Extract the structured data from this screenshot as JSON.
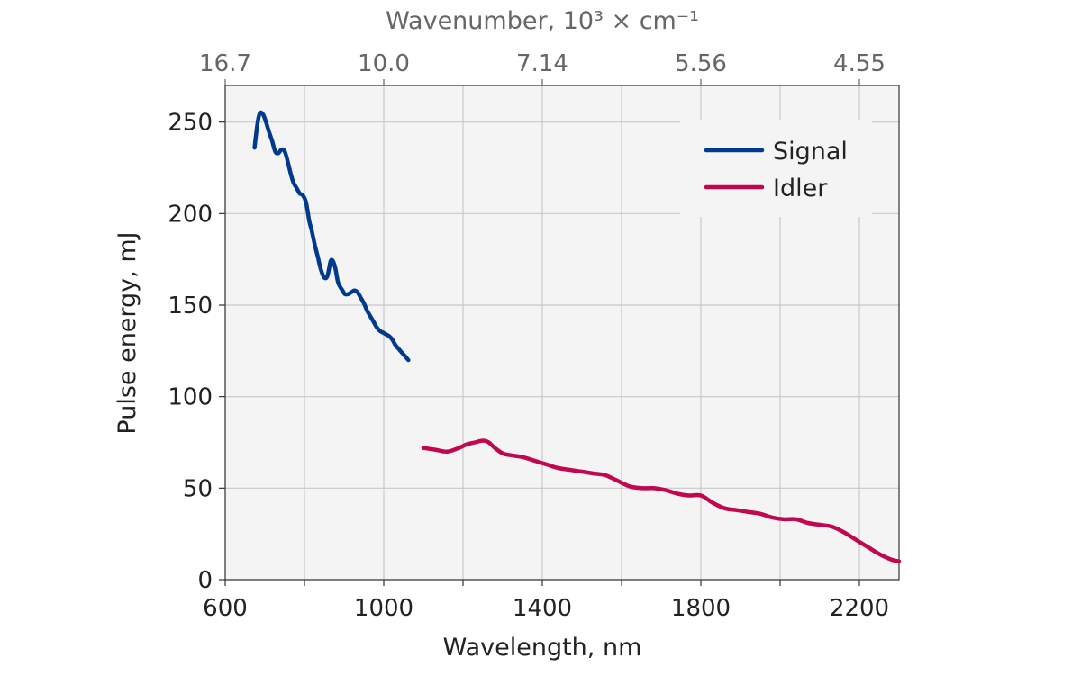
{
  "chart_data": {
    "type": "line",
    "xlabel": "Wavelength, nm",
    "ylabel": "Pulse energy, mJ",
    "top_axis_label": "Wavenumber, 10³ × cm⁻¹",
    "xlim": [
      600,
      2300
    ],
    "ylim": [
      0,
      270
    ],
    "x_ticks": [
      600,
      1000,
      1400,
      1800,
      2200
    ],
    "x_ticks_minor": [
      800,
      1200,
      1600,
      2000
    ],
    "y_ticks": [
      0,
      50,
      100,
      150,
      200,
      250
    ],
    "top_ticks": [
      {
        "wavelength": 600,
        "label": "16.7"
      },
      {
        "wavelength": 1000,
        "label": "10.0"
      },
      {
        "wavelength": 1400,
        "label": "7.14"
      },
      {
        "wavelength": 1800,
        "label": "5.56"
      },
      {
        "wavelength": 2200,
        "label": "4.55"
      }
    ],
    "grid": true,
    "legend_position": "top-right",
    "series": [
      {
        "name": "Signal",
        "color": "#003a8c",
        "x": [
          674,
          682,
          688,
          696,
          703,
          710,
          718,
          726,
          734,
          742,
          750,
          757,
          765,
          772,
          780,
          788,
          796,
          804,
          812,
          818,
          826,
          834,
          842,
          850,
          858,
          866,
          872,
          878,
          884,
          890,
          896,
          902,
          910,
          918,
          926,
          934,
          942,
          950,
          958,
          966,
          974,
          982,
          990,
          998,
          1006,
          1014,
          1022,
          1030,
          1038,
          1046,
          1054,
          1062
        ],
        "y": [
          236,
          250,
          255,
          254,
          250,
          245,
          240,
          234,
          233,
          235,
          234,
          229,
          222,
          217,
          214,
          211,
          210,
          206,
          196,
          191,
          183,
          176,
          169,
          165,
          166,
          174,
          174,
          170,
          163,
          160,
          158,
          156,
          156,
          157,
          158,
          157,
          154,
          151,
          147,
          144,
          141,
          138,
          136,
          135,
          134,
          133,
          131,
          128,
          126,
          124,
          122,
          120
        ]
      },
      {
        "name": "Idler",
        "color": "#c0074f",
        "x": [
          1100,
          1130,
          1160,
          1190,
          1210,
          1230,
          1250,
          1265,
          1280,
          1300,
          1320,
          1350,
          1380,
          1410,
          1440,
          1470,
          1500,
          1530,
          1560,
          1590,
          1620,
          1650,
          1680,
          1710,
          1740,
          1770,
          1800,
          1830,
          1860,
          1890,
          1920,
          1950,
          1980,
          2010,
          2040,
          2070,
          2100,
          2130,
          2160,
          2190,
          2220,
          2250,
          2280,
          2300
        ],
        "y": [
          72,
          71,
          70,
          72,
          74,
          75,
          76,
          75,
          72,
          69,
          68,
          67,
          65,
          63,
          61,
          60,
          59,
          58,
          57,
          54,
          51,
          50,
          50,
          49,
          47,
          46,
          46,
          42,
          39,
          38,
          37,
          36,
          34,
          33,
          33,
          31,
          30,
          29,
          26,
          22,
          18,
          14,
          11,
          10
        ]
      }
    ]
  }
}
